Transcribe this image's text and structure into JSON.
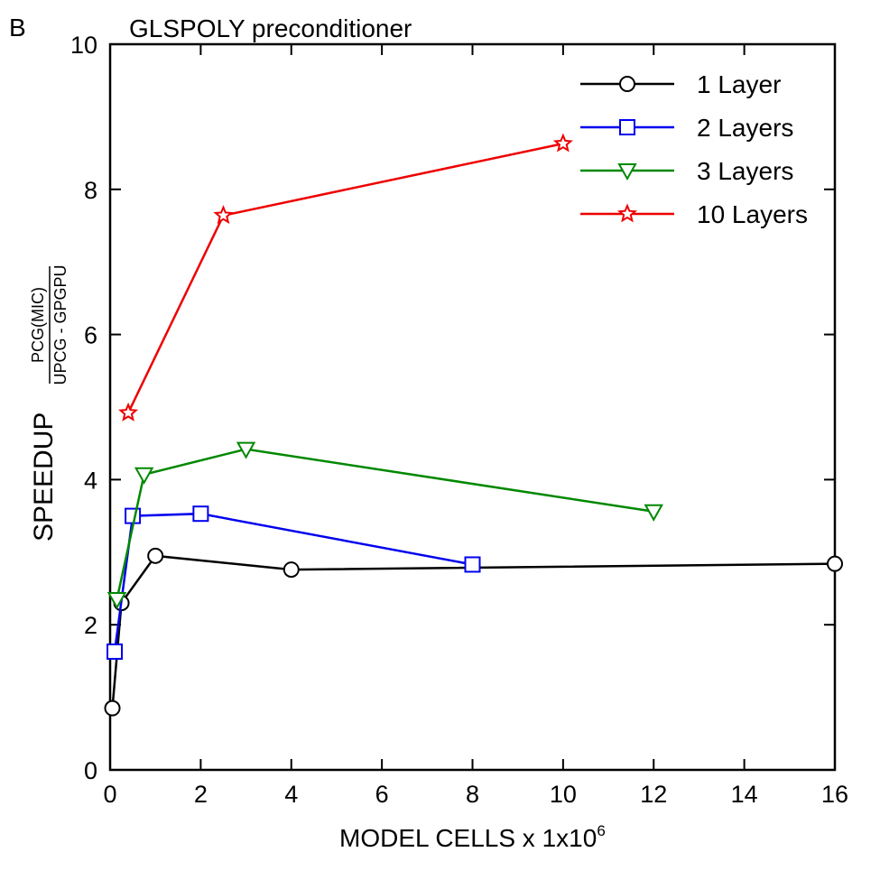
{
  "panel_label": "B",
  "chart_data": {
    "type": "line",
    "title": "GLSPOLY preconditioner",
    "xlabel": "MODEL CELLS x 1x10",
    "xlabel_superscript": "6",
    "ylabel": "SPEEDUP",
    "ylabel_numerator": "PCG(MIC)",
    "ylabel_denominator": "UPCG - GPGPU",
    "xlim": [
      0,
      16
    ],
    "ylim": [
      0,
      10
    ],
    "xticks": [
      0,
      2,
      4,
      6,
      8,
      10,
      12,
      14,
      16
    ],
    "yticks": [
      0,
      2,
      4,
      6,
      8,
      10
    ],
    "grid": false,
    "legend_position": "top-right",
    "series": [
      {
        "name": "1 Layer",
        "color": "#000000",
        "marker": "circle",
        "x": [
          0.05,
          0.25,
          1.0,
          4.0,
          16.0
        ],
        "y": [
          0.85,
          2.3,
          2.95,
          2.76,
          2.84
        ]
      },
      {
        "name": "2 Layers",
        "color": "#0000ee",
        "marker": "square",
        "x": [
          0.1,
          0.5,
          2.0,
          8.0
        ],
        "y": [
          1.63,
          3.5,
          3.53,
          2.83
        ]
      },
      {
        "name": "3 Layers",
        "color": "#008800",
        "marker": "triangle-down",
        "x": [
          0.15,
          0.75,
          3.0,
          12.0
        ],
        "y": [
          2.35,
          4.07,
          4.42,
          3.56
        ]
      },
      {
        "name": "10 Layers",
        "color": "#ee0000",
        "marker": "star",
        "x": [
          0.4,
          2.5,
          10.0
        ],
        "y": [
          4.92,
          7.64,
          8.63
        ]
      }
    ]
  }
}
